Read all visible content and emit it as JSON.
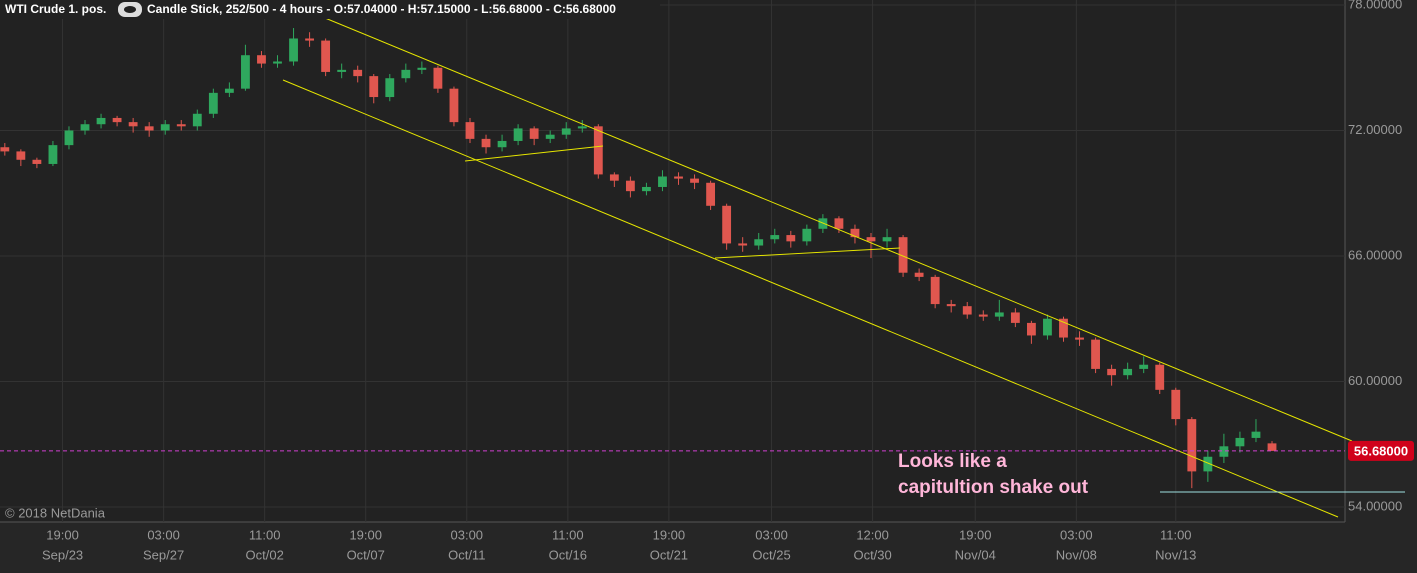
{
  "chart_data": {
    "type": "candlestick",
    "instrument": "WTI Crude 1. pos.",
    "subtitle": "Candle Stick, 252/500 - 4 hours - O:57.04000 - H:57.15000 - L:56.68000 - C:56.68000",
    "annotation": [
      "Looks like a",
      "capitultion shake out"
    ],
    "copyright": "© 2018 NetDania",
    "up_color": "#2fa85e",
    "down_color": "#e0574f",
    "x": [
      0,
      1,
      2,
      3,
      4,
      5,
      6,
      7,
      8,
      9,
      10,
      11,
      12,
      13,
      14,
      15,
      16,
      17,
      18,
      19,
      20,
      21,
      22,
      23,
      24,
      25,
      26,
      27,
      28,
      29,
      30,
      31,
      32,
      33,
      34,
      35,
      36,
      37,
      38,
      39,
      40,
      41,
      42,
      43,
      44,
      45,
      46,
      47,
      48,
      49,
      50,
      51,
      52,
      53,
      54,
      55,
      56,
      57,
      58,
      59,
      60,
      61,
      62,
      63,
      64,
      65,
      66,
      67,
      68,
      69,
      70,
      71,
      72,
      73,
      74,
      75,
      76,
      77,
      78,
      79
    ],
    "open": [
      71.2,
      71.0,
      70.6,
      70.4,
      71.3,
      72.0,
      72.3,
      72.6,
      72.4,
      72.2,
      72.0,
      72.3,
      72.2,
      72.8,
      73.8,
      74.0,
      75.6,
      75.2,
      75.3,
      76.4,
      76.3,
      74.8,
      74.9,
      74.6,
      73.6,
      74.5,
      74.9,
      75.0,
      74.0,
      72.4,
      71.6,
      71.2,
      71.5,
      72.1,
      71.6,
      71.8,
      72.1,
      72.2,
      69.9,
      69.6,
      69.1,
      69.3,
      69.8,
      69.7,
      69.5,
      68.4,
      66.6,
      66.5,
      66.8,
      67.0,
      66.7,
      67.3,
      67.8,
      67.3,
      66.9,
      66.7,
      66.9,
      65.2,
      65.0,
      63.7,
      63.6,
      63.2,
      63.1,
      63.3,
      62.8,
      62.2,
      63.0,
      62.1,
      62.0,
      60.6,
      60.3,
      60.6,
      60.8,
      59.6,
      58.2,
      55.7,
      56.4,
      56.9,
      57.3,
      57.04
    ],
    "high": [
      71.4,
      71.1,
      70.7,
      71.5,
      72.2,
      72.5,
      72.8,
      72.7,
      72.6,
      72.4,
      72.5,
      72.5,
      73.0,
      74.0,
      74.3,
      76.1,
      75.8,
      75.6,
      76.9,
      76.7,
      76.4,
      75.2,
      75.1,
      74.7,
      74.7,
      75.2,
      75.3,
      75.1,
      74.1,
      72.6,
      71.8,
      71.8,
      72.3,
      72.2,
      72.0,
      72.4,
      72.5,
      72.3,
      70.0,
      69.8,
      69.5,
      70.1,
      70.0,
      69.9,
      69.6,
      68.5,
      66.9,
      67.1,
      67.3,
      67.2,
      67.5,
      68.0,
      67.9,
      67.5,
      67.1,
      67.3,
      67.0,
      65.4,
      65.1,
      63.9,
      63.8,
      63.4,
      63.9,
      63.5,
      62.9,
      63.2,
      63.1,
      62.4,
      62.1,
      60.8,
      60.9,
      61.2,
      60.9,
      59.7,
      58.3,
      56.7,
      57.5,
      57.6,
      58.2,
      57.15
    ],
    "low": [
      70.8,
      70.3,
      70.2,
      70.3,
      71.1,
      71.8,
      72.1,
      72.2,
      71.9,
      71.7,
      71.8,
      72.0,
      72.0,
      72.6,
      73.6,
      73.9,
      75.0,
      75.0,
      75.1,
      76.0,
      74.6,
      74.5,
      74.3,
      73.3,
      73.4,
      74.3,
      74.7,
      73.8,
      72.2,
      71.4,
      70.9,
      71.0,
      71.3,
      71.3,
      71.4,
      71.6,
      71.9,
      69.7,
      69.3,
      68.8,
      68.9,
      69.1,
      69.4,
      69.2,
      68.2,
      66.3,
      66.2,
      66.3,
      66.6,
      66.4,
      66.5,
      67.1,
      67.1,
      66.6,
      65.9,
      66.4,
      65.0,
      64.8,
      63.5,
      63.3,
      63.0,
      62.9,
      62.9,
      62.6,
      61.8,
      62.0,
      61.9,
      61.7,
      60.4,
      59.8,
      60.1,
      60.4,
      59.4,
      57.9,
      54.9,
      55.2,
      56.1,
      56.6,
      57.1,
      56.68
    ],
    "close": [
      71.0,
      70.6,
      70.4,
      71.3,
      72.0,
      72.3,
      72.6,
      72.4,
      72.2,
      72.0,
      72.3,
      72.2,
      72.8,
      73.8,
      74.0,
      75.6,
      75.2,
      75.3,
      76.4,
      76.3,
      74.8,
      74.9,
      74.6,
      73.6,
      74.5,
      74.9,
      75.0,
      74.0,
      72.4,
      71.6,
      71.2,
      71.5,
      72.1,
      71.6,
      71.8,
      72.1,
      72.2,
      69.9,
      69.6,
      69.1,
      69.3,
      69.8,
      69.7,
      69.5,
      68.4,
      66.6,
      66.5,
      66.8,
      67.0,
      66.7,
      67.3,
      67.8,
      67.3,
      66.9,
      66.7,
      66.9,
      65.2,
      65.0,
      63.7,
      63.6,
      63.2,
      63.1,
      63.3,
      62.8,
      62.2,
      63.0,
      62.1,
      62.0,
      60.6,
      60.3,
      60.6,
      60.8,
      59.6,
      58.2,
      55.7,
      56.4,
      56.9,
      57.3,
      57.6,
      56.68
    ],
    "last_price": {
      "value": 56.68,
      "label": "56.68000"
    },
    "xlim": [
      -0.3,
      83.55
    ],
    "xticks": [
      {
        "value": 3.6,
        "label": "19:00",
        "date": "Sep/23"
      },
      {
        "value": 9.9,
        "label": "03:00",
        "date": "Sep/27"
      },
      {
        "value": 16.2,
        "label": "11:00",
        "date": "Oct/02"
      },
      {
        "value": 22.5,
        "label": "19:00",
        "date": "Oct/07"
      },
      {
        "value": 28.8,
        "label": "03:00",
        "date": "Oct/11"
      },
      {
        "value": 35.1,
        "label": "11:00",
        "date": "Oct/16"
      },
      {
        "value": 41.4,
        "label": "19:00",
        "date": "Oct/21"
      },
      {
        "value": 47.8,
        "label": "03:00",
        "date": "Oct/25"
      },
      {
        "value": 54.1,
        "label": "12:00",
        "date": "Oct/30"
      },
      {
        "value": 60.5,
        "label": "19:00",
        "date": "Nov/04"
      },
      {
        "value": 66.8,
        "label": "03:00",
        "date": "Nov/08"
      },
      {
        "value": 73.0,
        "label": "11:00",
        "date": "Nov/13"
      }
    ],
    "ylim": [
      53.28,
      78.24
    ],
    "yticks": [
      {
        "value": 54,
        "label": "54.00000"
      },
      {
        "value": 60,
        "label": "60.00000"
      },
      {
        "value": 66,
        "label": "66.00000"
      },
      {
        "value": 72,
        "label": "72.00000"
      },
      {
        "value": 78,
        "label": "78.00000"
      }
    ],
    "grid": true
  }
}
